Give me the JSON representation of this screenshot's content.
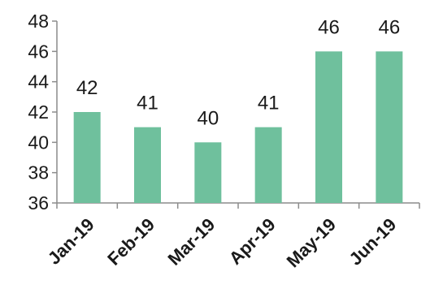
{
  "chart_data": {
    "type": "bar",
    "categories": [
      "Jan-19",
      "Feb-19",
      "Mar-19",
      "Apr-19",
      "May-19",
      "Jun-19"
    ],
    "values": [
      42,
      41,
      40,
      41,
      46,
      46
    ],
    "data_labels": [
      "42",
      "41",
      "40",
      "41",
      "46",
      "46"
    ],
    "ylim": [
      36,
      48
    ],
    "yticks": [
      "36",
      "38",
      "40",
      "42",
      "44",
      "46",
      "48"
    ],
    "grid": false,
    "legend": "none",
    "colors": {
      "bar": "#6fc09d",
      "axis": "#8c8c8c",
      "text": "#1a1a1a"
    }
  }
}
